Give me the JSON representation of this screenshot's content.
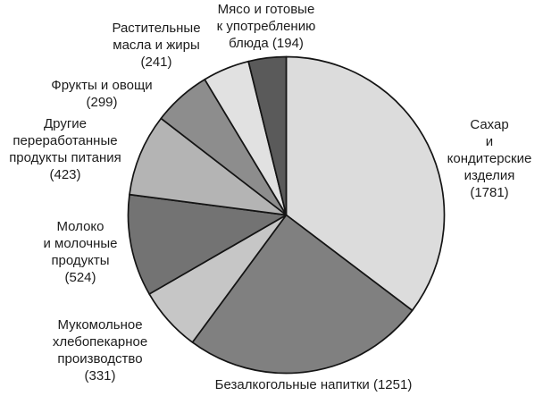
{
  "chart_data": {
    "type": "pie",
    "title": "",
    "start_angle_deg": 0,
    "direction": "clockwise",
    "legend_position": "none",
    "labels_placement": "around",
    "outline_color": "#141414",
    "background_color": "#ffffff",
    "segments": [
      {
        "name": "Сахар и кондитерские изделия",
        "value": 1781,
        "label": "Сахар\nи кондитерские\nизделия\n(1781)",
        "color": "#dcdcdc"
      },
      {
        "name": "Безалкогольные напитки",
        "value": 1251,
        "label": "Безалкогольные напитки (1251)",
        "color": "#808080"
      },
      {
        "name": "Мукомольное хлебопекарное производство",
        "value": 331,
        "label": "Мукомольное\nхлебопекарное\nпроизводство\n(331)",
        "color": "#c6c6c6"
      },
      {
        "name": "Молоко и молочные продукты",
        "value": 524,
        "label": "Молоко\nи молочные\nпродукты\n(524)",
        "color": "#737373"
      },
      {
        "name": "Другие переработанные продукты питания",
        "value": 423,
        "label": "Другие\nпереработанные\nпродукты питания\n(423)",
        "color": "#b4b4b4"
      },
      {
        "name": "Фрукты и овощи",
        "value": 299,
        "label": "Фрукты и овощи\n(299)",
        "color": "#8d8d8d"
      },
      {
        "name": "Растительные масла и жиры",
        "value": 241,
        "label": "Растительные\nмасла и жиры\n(241)",
        "color": "#e1e1e1"
      },
      {
        "name": "Мясо и готовые к употреблению блюда",
        "value": 194,
        "label": "Мясо и готовые\nк употреблению\nблюда (194)",
        "color": "#5a5a5a"
      }
    ]
  }
}
